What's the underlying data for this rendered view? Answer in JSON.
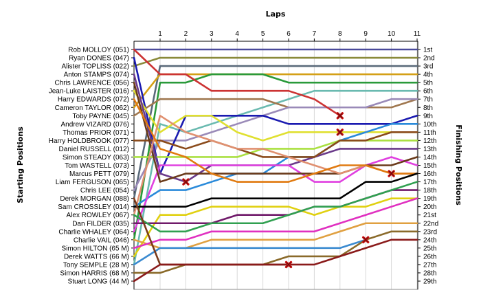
{
  "chart_data": {
    "type": "line",
    "title": "Laps",
    "ylabel_left": "Starting Positions",
    "ylabel_right": "Finishing Positions",
    "laps": [
      1,
      2,
      3,
      4,
      5,
      6,
      7,
      8,
      9,
      10,
      11
    ],
    "grid": "vertical-lap-lines",
    "drivers": [
      "Rob MOLLOY (051)",
      "Ryan DONES (047)",
      "Alister TOPLISS (022)",
      "Anton STAMPS (074)",
      "Chris LAWRENCE (056)",
      "Jean-Luke LAISTER (016)",
      "Harry EDWARDS (072)",
      "Cameron TAYLOR (062)",
      "Toby PAYNE (045)",
      "Andrew VIZARD (076)",
      "Thomas PRIOR (071)",
      "Harry HOLDBROOK (077)",
      "Daniel RUSSELL (012)",
      "Simon STEADY (063)",
      "Tom WASTELL (073)",
      "Marcus PETT (079)",
      "Liam FERGUSON (065)",
      "Chris LEE (054)",
      "Derek MORGAN (088)",
      "Sam CROSSLEY (014)",
      "Alex ROWLEY (067)",
      "Dan FILDER (035)",
      "Charlie WHALEY (064)",
      "Charlie VAIL (046)",
      "Simon HILTON (65 M)",
      "Derek WATTS (66 M)",
      "Tony SEMPLE (28 M)",
      "Simon HARRIS (68 M)",
      "Stuart LONG (44 M)"
    ],
    "finishing_labels": [
      "1st",
      "2nd",
      "3rd",
      "4th",
      "5th",
      "6th",
      "7th",
      "8th",
      "9th",
      "10th",
      "11th",
      "12th",
      "13th",
      "14th",
      "15th",
      "16th",
      "17th",
      "18th",
      "19th",
      "20th",
      "21st",
      "22nd",
      "23rd",
      "24th",
      "25th",
      "26th",
      "27th",
      "28th",
      "29th"
    ],
    "series": [
      {
        "color": "#4A4A9A",
        "positions": [
          1,
          1,
          1,
          1,
          1,
          1,
          1,
          1,
          1,
          1,
          1,
          1
        ]
      },
      {
        "color": "#8A8A3A",
        "positions": [
          3,
          2,
          2,
          2,
          2,
          2,
          2,
          2,
          2,
          2,
          2,
          2
        ]
      },
      {
        "color": "#5A6A7A",
        "positions": [
          19,
          3,
          3,
          3,
          3,
          3,
          3,
          3,
          3,
          3,
          3,
          3
        ]
      },
      {
        "color": "#D4A017",
        "positions": [
          8,
          4,
          4,
          4,
          4,
          4,
          4,
          4,
          4,
          4,
          4,
          4
        ]
      },
      {
        "color": "#2A9A3A",
        "positions": [
          24,
          5,
          5,
          4,
          4,
          4,
          5,
          5,
          5,
          5,
          5,
          5
        ]
      },
      {
        "color": "#6ABAB0",
        "positions": [
          27,
          10,
          11,
          10,
          9,
          8,
          7,
          6,
          6,
          6,
          6,
          6
        ]
      },
      {
        "color": "#A07850",
        "positions": [
          9,
          7,
          7,
          7,
          7,
          7,
          8,
          8,
          8,
          8,
          8,
          7
        ]
      },
      {
        "color": "#9A8AB8",
        "positions": [
          18,
          12,
          12,
          11,
          10,
          9,
          8,
          8,
          8,
          8,
          7,
          7
        ]
      },
      {
        "color": "#1A1AB0",
        "positions": [
          2,
          16,
          9,
          9,
          9,
          9,
          10,
          10,
          10,
          10,
          10,
          9
        ]
      },
      {
        "color": "#CC3333",
        "positions": [
          1,
          4,
          4,
          6,
          6,
          6,
          6,
          7,
          9,
          null,
          null,
          null
        ]
      },
      {
        "color": "#E0E030",
        "positions": [
          6,
          11,
          9,
          9,
          11,
          12,
          11,
          11,
          11,
          11,
          11,
          11
        ]
      },
      {
        "color": "#2A8ADA",
        "positions": [
          20,
          18,
          18,
          17,
          16,
          16,
          14,
          14,
          12,
          11,
          10,
          10
        ]
      },
      {
        "color": "#AAE040",
        "positions": [
          14,
          14,
          14,
          14,
          14,
          13,
          13,
          13,
          12,
          12,
          12,
          12
        ]
      },
      {
        "color": "#6A3A8A",
        "positions": [
          4,
          16,
          17,
          15,
          15,
          15,
          15,
          14,
          13,
          13,
          13,
          13
        ]
      },
      {
        "color": "#E040E0",
        "positions": [
          23,
          15,
          15,
          15,
          15,
          15,
          15,
          17,
          17,
          15,
          14,
          15
        ]
      },
      {
        "color": "#8A4A1A",
        "positions": [
          12,
          12,
          13,
          12,
          13,
          14,
          14,
          14,
          12,
          12,
          11,
          11
        ]
      },
      {
        "color": "#6A3A1A",
        "positions": [
          5,
          17,
          16,
          16,
          16,
          16,
          16,
          16,
          16,
          15,
          15,
          14
        ]
      },
      {
        "color": "#E09070",
        "positions": [
          21,
          9,
          11,
          12,
          13,
          13,
          14,
          15,
          16,
          15,
          16,
          16
        ]
      },
      {
        "color": "#E07A10",
        "positions": [
          7,
          13,
          14,
          16,
          17,
          17,
          17,
          16,
          15,
          15,
          16,
          16
        ]
      },
      {
        "color": "#000000",
        "positions": [
          20,
          20,
          20,
          19,
          19,
          19,
          19,
          19,
          19,
          17,
          17,
          16
        ]
      },
      {
        "color": "#E0D010",
        "positions": [
          26,
          21,
          21,
          20,
          20,
          20,
          20,
          21,
          20,
          20,
          19,
          19
        ]
      },
      {
        "color": "#701A6A",
        "positions": [
          22,
          22,
          22,
          22,
          21,
          21,
          21,
          20,
          20,
          19,
          18,
          18
        ]
      },
      {
        "color": "#30A050",
        "positions": [
          21,
          23,
          23,
          22,
          22,
          22,
          21,
          20,
          20,
          19,
          18,
          17
        ]
      },
      {
        "color": "#E0A040",
        "positions": [
          24,
          25,
          25,
          24,
          24,
          24,
          24,
          24,
          23,
          22,
          22,
          22
        ]
      },
      {
        "color": "#3A8AD0",
        "positions": [
          27,
          25,
          25,
          25,
          25,
          25,
          25,
          25,
          25,
          24,
          null,
          null
        ]
      },
      {
        "color": "#8A6A2A",
        "positions": [
          28,
          28,
          27,
          27,
          27,
          27,
          26,
          26,
          26,
          24,
          23,
          23
        ]
      },
      {
        "color": "#E030C0",
        "positions": [
          25,
          24,
          24,
          23,
          23,
          23,
          23,
          23,
          22,
          21,
          20,
          19
        ]
      },
      {
        "color": "#7A3A1A",
        "positions": [
          19,
          27,
          27,
          27,
          27,
          27,
          27,
          null,
          null,
          null,
          null,
          null
        ]
      },
      {
        "color": "#8A1A1A",
        "positions": [
          29,
          27,
          27,
          27,
          27,
          27,
          27,
          27,
          26,
          25,
          24,
          24
        ]
      }
    ],
    "retirements": [
      {
        "lap": 2,
        "position": 17
      },
      {
        "lap": 6,
        "position": 27
      },
      {
        "lap": 8,
        "position": 9
      },
      {
        "lap": 8,
        "position": 11
      },
      {
        "lap": 9,
        "position": 24
      },
      {
        "lap": 10,
        "position": 16
      }
    ]
  }
}
